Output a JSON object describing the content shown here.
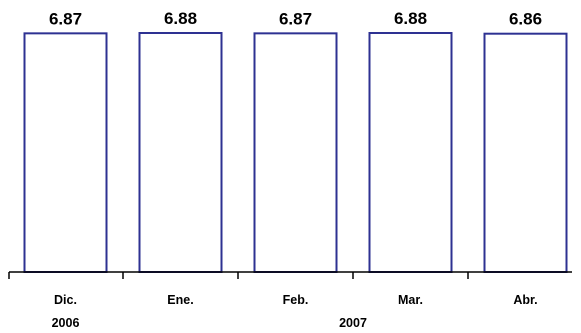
{
  "chart_data": {
    "type": "bar",
    "categories": [
      "Dic.",
      "Ene.",
      "Feb.",
      "Mar.",
      "Abr."
    ],
    "values": [
      6.87,
      6.88,
      6.87,
      6.88,
      6.86
    ],
    "value_labels": [
      "6.87",
      "6.88",
      "6.87",
      "6.88",
      "6.86"
    ],
    "year_groups": [
      {
        "label": "2006",
        "start": 0,
        "end": 0
      },
      {
        "label": "2007",
        "start": 1,
        "end": 4
      }
    ],
    "bar_fill": "#ffffff",
    "bar_stroke": "#2e3192",
    "axis_color": "#000000",
    "grid": false,
    "legend": "none"
  }
}
